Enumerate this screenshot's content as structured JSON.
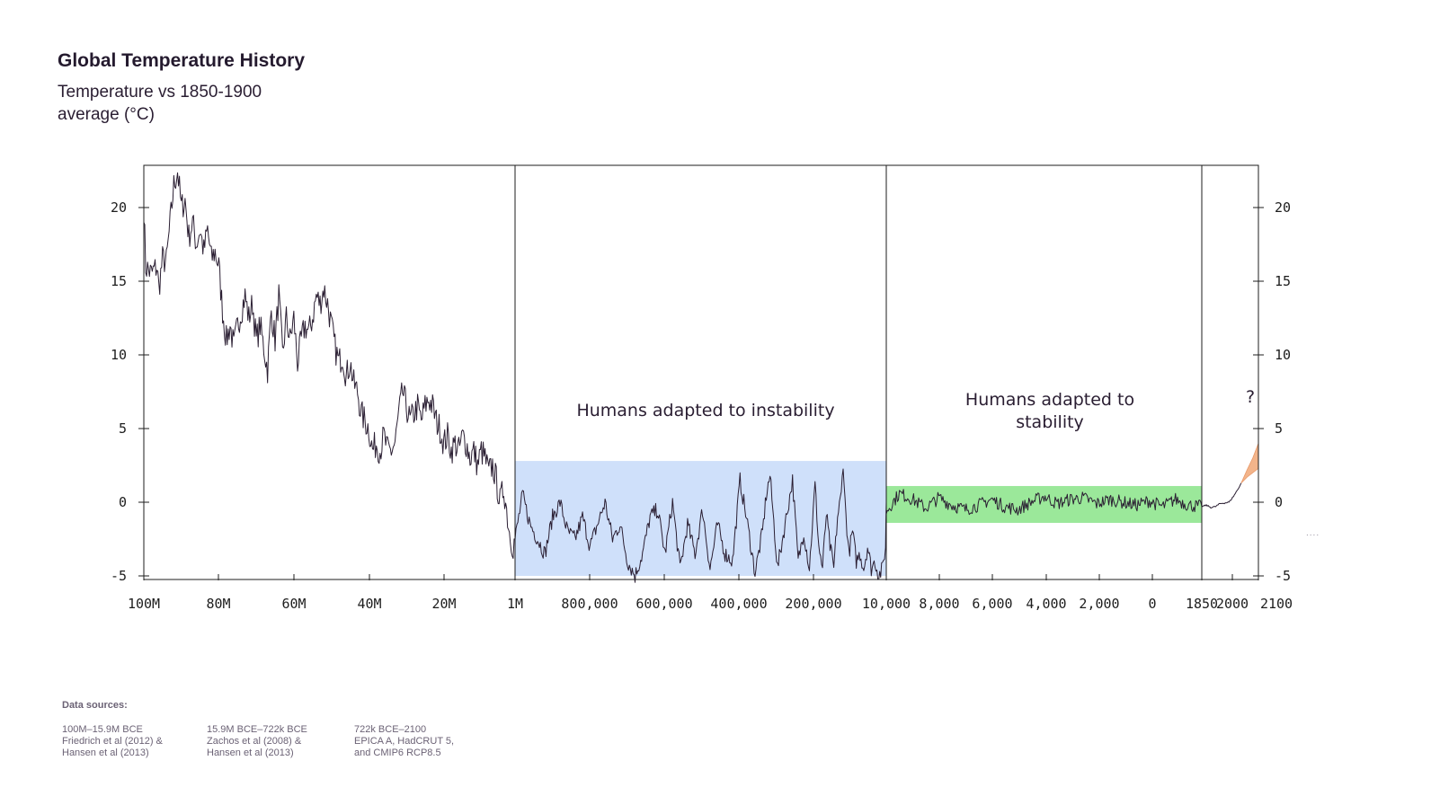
{
  "title": "Global Temperature History",
  "subtitle": "Temperature vs 1850-1900 average (°C)",
  "sources": {
    "heading": "Data sources:",
    "columns": [
      "100M–15.9M BCE\nFriedrich et al (2012) &\nHansen et al (2013)",
      "15.9M BCE–722k BCE\nZachos et al (2008) &\nHansen et al (2013)",
      "722k BCE–2100\nEPICA A, HadCRUT 5,\nand CMIP6 RCP8.5"
    ]
  },
  "overflow_marker": "....",
  "colors": {
    "line": "#2a1e32",
    "instability_band": "#cfe0fa",
    "stability_band": "#9be89a",
    "projection": "#f3b48a"
  },
  "chart_data": {
    "type": "line",
    "ylim": [
      -5,
      23
    ],
    "yticks": [
      -5,
      0,
      5,
      10,
      15,
      20
    ],
    "x_segments": [
      {
        "label_from": "100M",
        "label_to": "1M",
        "unit": "years BCE",
        "ticks": [
          "100M",
          "80M",
          "60M",
          "40M",
          "20M"
        ]
      },
      {
        "label_from": "1M",
        "label_to": "10,000",
        "unit": "years BCE",
        "ticks": [
          "1M",
          "800,000",
          "600,000",
          "400,000",
          "200,000"
        ]
      },
      {
        "label_from": "10,000",
        "label_to": "1850",
        "unit": "years",
        "ticks": [
          "10,000",
          "8,000",
          "6,000",
          "4,000",
          "2,000",
          "0"
        ]
      },
      {
        "label_from": "1850",
        "label_to": "2100",
        "unit": "year CE",
        "ticks": [
          "1850",
          "2000",
          "2100"
        ]
      }
    ],
    "annotations": [
      {
        "text": "Humans adapted to instability",
        "segment": 1
      },
      {
        "text": "Humans adapted to stability",
        "segment": 2
      },
      {
        "text": "?",
        "segment": 3
      }
    ],
    "bands": [
      {
        "segment": 1,
        "y_from": -5,
        "y_to": 2.8,
        "color": "#cfe0fa"
      },
      {
        "segment": 2,
        "y_from": -1.4,
        "y_to": 1.1,
        "color": "#9be89a"
      }
    ],
    "series": [
      {
        "segment": 0,
        "x": [
          100,
          99.5,
          98,
          96.5,
          96,
          95,
          94,
          92,
          91,
          90,
          89,
          88,
          87,
          86,
          85,
          84,
          83,
          82,
          81,
          80,
          79,
          78,
          77,
          76,
          75,
          74,
          73,
          72,
          71,
          70,
          69,
          68,
          67,
          66,
          65,
          64,
          63,
          62,
          61,
          60,
          59,
          58,
          57,
          56,
          55,
          54,
          53,
          52,
          51,
          50,
          49,
          48,
          47,
          46,
          45,
          44,
          43,
          42,
          41,
          40,
          39,
          38,
          37,
          36,
          35,
          34,
          33,
          32,
          31,
          30,
          29,
          28,
          27,
          26,
          25,
          24,
          23,
          22,
          21,
          20,
          19,
          18,
          17,
          16,
          15,
          14,
          13,
          12,
          11,
          10,
          9,
          8,
          7,
          6,
          5,
          4,
          3,
          2.5,
          2,
          1.5,
          1
        ],
        "y": [
          20,
          16,
          15.5,
          16,
          14.5,
          16.5,
          16.3,
          21.5,
          22.5,
          20,
          20.5,
          18,
          19,
          17.5,
          18.5,
          17,
          18.5,
          16.5,
          17,
          16,
          13,
          11,
          12,
          10.5,
          12,
          13,
          14,
          12.5,
          13.5,
          11,
          12,
          10.5,
          9,
          13,
          11,
          14,
          10,
          12.5,
          11,
          12.5,
          9.5,
          11,
          12,
          11.5,
          12.5,
          14,
          13.5,
          14.5,
          13.5,
          12,
          10.5,
          9.5,
          10,
          8.5,
          9.5,
          8,
          7.5,
          6,
          5.5,
          5,
          3.5,
          4,
          3.5,
          4.5,
          3.5,
          3.5,
          4,
          6,
          7.5,
          6.5,
          5.5,
          6,
          6.5,
          5.5,
          6.5,
          7,
          6.5,
          5.5,
          5,
          4,
          4.5,
          3.5,
          4,
          3.5,
          4.5,
          4,
          3,
          3.5,
          2.5,
          3.5,
          3,
          2,
          2.5,
          1.5,
          0,
          1,
          -1,
          -2,
          -2.5,
          -3,
          -2.5
        ]
      },
      {
        "segment": 1,
        "x": [
          1000000,
          980000,
          960000,
          940000,
          920000,
          900000,
          880000,
          860000,
          840000,
          820000,
          800000,
          780000,
          760000,
          740000,
          720000,
          700000,
          680000,
          660000,
          640000,
          620000,
          600000,
          580000,
          560000,
          540000,
          520000,
          500000,
          480000,
          460000,
          440000,
          420000,
          400000,
          380000,
          360000,
          340000,
          330000,
          320000,
          300000,
          280000,
          260000,
          245000,
          230000,
          215000,
          200000,
          190000,
          180000,
          170000,
          160000,
          150000,
          140000,
          130000,
          125000,
          120000,
          110000,
          100000,
          90000,
          80000,
          70000,
          60000,
          50000,
          40000,
          30000,
          20000,
          12000,
          10000
        ],
        "y": [
          -2.5,
          0.5,
          -1.5,
          -2.5,
          -3.5,
          -1,
          0,
          -2,
          -2.5,
          -1,
          -3,
          -1.5,
          0,
          -2.5,
          -1.5,
          -4,
          -5,
          -3.5,
          -1,
          -0.5,
          -3.5,
          0,
          -4.5,
          -1.5,
          -3.5,
          -0.5,
          -4.5,
          -1.5,
          -3.5,
          -4,
          1.5,
          -1.5,
          -4.8,
          -2,
          0.5,
          1.8,
          -4.5,
          -1.5,
          1.5,
          -4,
          -2,
          -4.5,
          1.2,
          -3,
          -4.5,
          -0.8,
          -3,
          -4.5,
          -1,
          0.5,
          2.8,
          0,
          -3.5,
          -2,
          -4,
          -3.5,
          -4.5,
          -3,
          -4.5,
          -4,
          -5,
          -4.5,
          -3,
          0
        ]
      },
      {
        "segment": 2,
        "x": [
          10000,
          9500,
          9000,
          8500,
          8000,
          7500,
          7000,
          6500,
          6000,
          5500,
          5000,
          4500,
          4000,
          3500,
          3000,
          2500,
          2000,
          1500,
          1000,
          500,
          0,
          500,
          1000,
          1500,
          1850
        ],
        "y": [
          -0.6,
          0.6,
          0.2,
          -0.4,
          0.3,
          -0.2,
          -0.5,
          -0.2,
          0.2,
          -0.3,
          -0.5,
          0,
          0.4,
          -0.1,
          0.2,
          0.3,
          -0.1,
          0.2,
          0,
          -0.2,
          0.1,
          -0.3,
          0.2,
          -0.2,
          -0.3
        ]
      },
      {
        "segment": 3,
        "x": [
          1850,
          1870,
          1890,
          1910,
          1930,
          1950,
          1970,
          1990,
          2010,
          2024
        ],
        "y": [
          -0.3,
          -0.2,
          -0.35,
          -0.3,
          -0.1,
          -0.05,
          0,
          0.4,
          0.9,
          1.3
        ]
      }
    ],
    "projection": {
      "segment": 3,
      "x": [
        2024,
        2050,
        2075,
        2100
      ],
      "y_low": [
        1.3,
        1.7,
        2.0,
        2.3
      ],
      "y_high": [
        1.3,
        2.2,
        3.0,
        4.0
      ]
    }
  }
}
